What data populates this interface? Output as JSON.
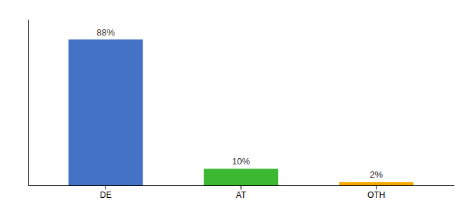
{
  "chart_data": {
    "type": "bar",
    "categories": [
      "DE",
      "AT",
      "OTH"
    ],
    "values": [
      88,
      10,
      2
    ],
    "value_labels": [
      "88%",
      "10%",
      "2%"
    ],
    "colors": [
      "#4472c4",
      "#3db832",
      "#f5a800"
    ],
    "ylim": [
      0,
      100
    ],
    "tick_labels": "x"
  }
}
